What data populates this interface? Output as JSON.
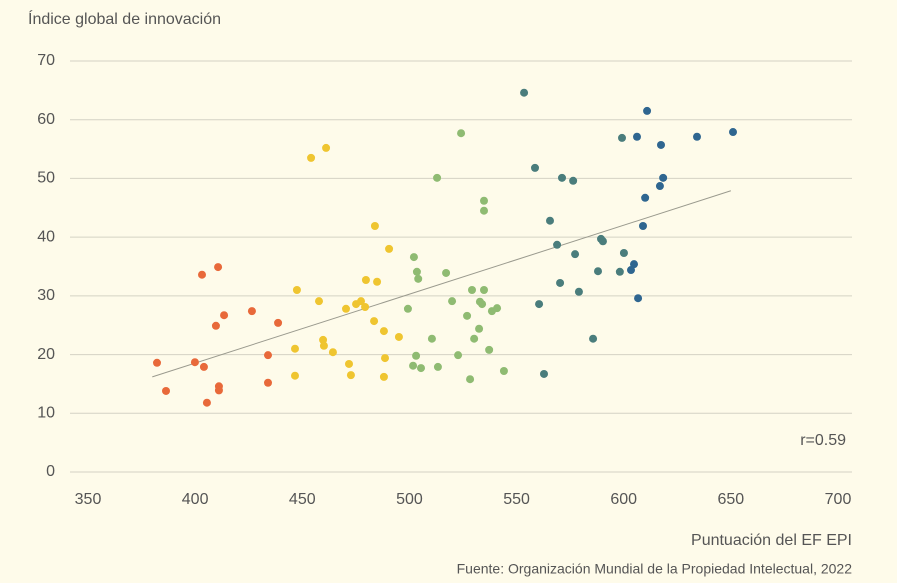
{
  "chart_data": {
    "type": "scatter",
    "title": "Índice global de innovación",
    "x_label": "Puntuación del EF EPI",
    "source": "Fuente: Organización Mundial de la Propiedad Intelectual, 2022",
    "annotation": "r=0.59",
    "xlim": [
      350,
      700
    ],
    "xticks": [
      350,
      400,
      450,
      500,
      550,
      600,
      650,
      700
    ],
    "ylim": [
      0,
      70
    ],
    "yticks": [
      0,
      10,
      20,
      30,
      40,
      50,
      60,
      70
    ],
    "grid": true,
    "trendline": {
      "color": "#9a9a8e",
      "x": [
        380,
        650
      ],
      "values": [
        16.2,
        47.9
      ]
    },
    "series": [
      {
        "color": "#e8693a",
        "x": [
          382.2,
          386.4,
          399.9,
          403.2,
          404.1,
          405.5,
          409.7,
          410.7,
          411.1,
          411.1,
          413.5,
          426.5,
          434,
          434,
          438.7
        ],
        "values": [
          18.6,
          13.8,
          18.7,
          33.6,
          17.9,
          11.8,
          24.9,
          34.9,
          14.6,
          13.9,
          26.7,
          27.4,
          19.9,
          15.2,
          25.4
        ]
      },
      {
        "color": "#efc530",
        "x": [
          446.6,
          446.6,
          447.5,
          454.1,
          457.8,
          459.7,
          460.1,
          461.1,
          464.3,
          470.4,
          471.8,
          472.7,
          475.1,
          477.4,
          479.3,
          479.7,
          483.5,
          483.9,
          484.9,
          488.1,
          488.6,
          488.1,
          490.5,
          495.1
        ],
        "values": [
          16.4,
          21.0,
          31.0,
          53.5,
          29.1,
          22.5,
          21.5,
          55.2,
          20.4,
          27.8,
          18.4,
          16.5,
          28.6,
          29.1,
          28.1,
          32.7,
          25.7,
          41.9,
          32.4,
          24.0,
          19.4,
          16.2,
          38.0,
          23.0
        ]
      },
      {
        "color": "#8fbb72",
        "x": [
          499.3,
          501.7,
          502.1,
          503.1,
          503.5,
          504.1,
          505.4,
          510.5,
          513.3,
          512.9,
          517.1,
          519.9,
          522.7,
          524.1,
          526.9,
          528.3,
          529.2,
          530.2,
          532.5,
          532.9,
          533.9,
          534.8,
          534.8,
          534.8,
          537.2,
          538.5,
          540.9,
          544.1
        ],
        "values": [
          27.8,
          18.1,
          36.6,
          19.8,
          34.1,
          32.9,
          17.7,
          22.7,
          17.9,
          50.1,
          33.9,
          29.1,
          19.9,
          57.7,
          26.6,
          15.8,
          31.0,
          22.7,
          24.4,
          29.0,
          28.6,
          31.0,
          46.2,
          44.5,
          20.8,
          27.4,
          27.9,
          17.2
        ]
      },
      {
        "color": "#4a7d7c",
        "x": [
          553.5,
          558.6,
          560.5,
          562.8,
          565.6,
          568.9,
          570.3,
          571.2,
          576.4,
          577.3,
          579.1,
          585.7,
          588.0,
          589.4,
          590.3,
          598.2,
          599.2,
          600.1
        ],
        "values": [
          64.6,
          51.8,
          28.6,
          16.7,
          42.8,
          38.7,
          32.2,
          50.1,
          49.6,
          37.1,
          30.7,
          22.7,
          34.2,
          39.7,
          39.3,
          34.1,
          56.9,
          37.3
        ]
      },
      {
        "color": "#2f6690",
        "x": [
          603.4,
          604.8,
          606.2,
          606.7,
          609.0,
          610.0,
          610.9,
          616.9,
          617.4,
          618.4,
          634.2,
          651.0
        ],
        "values": [
          34.4,
          35.4,
          57.1,
          29.6,
          41.9,
          46.7,
          61.5,
          48.7,
          55.7,
          50.1,
          57.1,
          57.9
        ]
      }
    ]
  }
}
